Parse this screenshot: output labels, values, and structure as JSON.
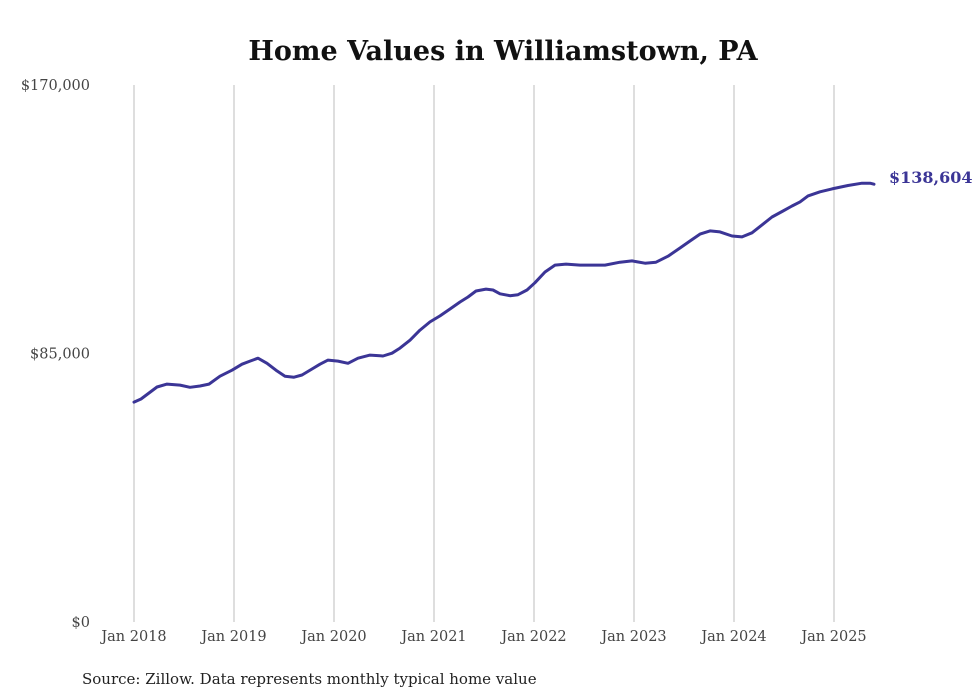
{
  "chart_data": {
    "type": "line",
    "title": "Home Values in Williamstown, PA",
    "xlabel": "",
    "ylabel": "",
    "ylim": [
      0,
      170000
    ],
    "xlim": [
      2018.0,
      2025.42
    ],
    "y_ticks": [
      0,
      85000,
      170000
    ],
    "y_tick_labels": [
      "$0",
      "$85,000",
      "$170,000"
    ],
    "x_ticks": [
      2018,
      2019,
      2020,
      2021,
      2022,
      2023,
      2024,
      2025
    ],
    "x_tick_labels": [
      "Jan 2018",
      "Jan 2019",
      "Jan 2020",
      "Jan 2021",
      "Jan 2022",
      "Jan 2023",
      "Jan 2024",
      "Jan 2025"
    ],
    "grid": "vertical",
    "line_color": "#3b3596",
    "end_label": "$138,604",
    "source": "Source: Zillow. Data represents monthly typical home value",
    "series": [
      {
        "name": "Typical home value",
        "points": [
          [
            2018.0,
            69600
          ],
          [
            2018.07,
            70600
          ],
          [
            2018.15,
            72500
          ],
          [
            2018.23,
            74400
          ],
          [
            2018.33,
            75300
          ],
          [
            2018.46,
            75000
          ],
          [
            2018.56,
            74300
          ],
          [
            2018.66,
            74700
          ],
          [
            2018.75,
            75300
          ],
          [
            2018.86,
            77800
          ],
          [
            2018.98,
            79700
          ],
          [
            2019.08,
            81600
          ],
          [
            2019.16,
            82600
          ],
          [
            2019.24,
            83500
          ],
          [
            2019.33,
            81900
          ],
          [
            2019.42,
            79700
          ],
          [
            2019.51,
            77800
          ],
          [
            2019.6,
            77500
          ],
          [
            2019.68,
            78200
          ],
          [
            2019.78,
            80100
          ],
          [
            2019.86,
            81600
          ],
          [
            2019.94,
            82900
          ],
          [
            2020.04,
            82600
          ],
          [
            2020.14,
            81900
          ],
          [
            2020.24,
            83500
          ],
          [
            2020.36,
            84500
          ],
          [
            2020.49,
            84200
          ],
          [
            2020.58,
            85100
          ],
          [
            2020.66,
            86700
          ],
          [
            2020.76,
            89200
          ],
          [
            2020.86,
            92400
          ],
          [
            2020.96,
            95000
          ],
          [
            2021.06,
            96900
          ],
          [
            2021.16,
            99100
          ],
          [
            2021.26,
            101300
          ],
          [
            2021.34,
            102900
          ],
          [
            2021.42,
            104800
          ],
          [
            2021.52,
            105400
          ],
          [
            2021.59,
            105100
          ],
          [
            2021.66,
            103900
          ],
          [
            2021.76,
            103300
          ],
          [
            2021.84,
            103600
          ],
          [
            2021.93,
            105100
          ],
          [
            2022.01,
            107400
          ],
          [
            2022.11,
            110800
          ],
          [
            2022.21,
            113000
          ],
          [
            2022.32,
            113300
          ],
          [
            2022.46,
            113000
          ],
          [
            2022.58,
            113000
          ],
          [
            2022.71,
            113000
          ],
          [
            2022.86,
            113900
          ],
          [
            2022.98,
            114300
          ],
          [
            2023.11,
            113600
          ],
          [
            2023.22,
            113900
          ],
          [
            2023.34,
            115800
          ],
          [
            2023.46,
            118400
          ],
          [
            2023.56,
            120600
          ],
          [
            2023.66,
            122800
          ],
          [
            2023.76,
            123800
          ],
          [
            2023.86,
            123500
          ],
          [
            2023.98,
            122200
          ],
          [
            2024.08,
            121900
          ],
          [
            2024.18,
            123200
          ],
          [
            2024.28,
            125700
          ],
          [
            2024.38,
            128200
          ],
          [
            2024.49,
            130100
          ],
          [
            2024.58,
            131700
          ],
          [
            2024.66,
            133000
          ],
          [
            2024.74,
            134900
          ],
          [
            2024.86,
            136200
          ],
          [
            2024.98,
            137100
          ],
          [
            2025.14,
            138200
          ],
          [
            2025.28,
            138900
          ],
          [
            2025.36,
            138900
          ],
          [
            2025.4,
            138604
          ]
        ]
      }
    ]
  }
}
